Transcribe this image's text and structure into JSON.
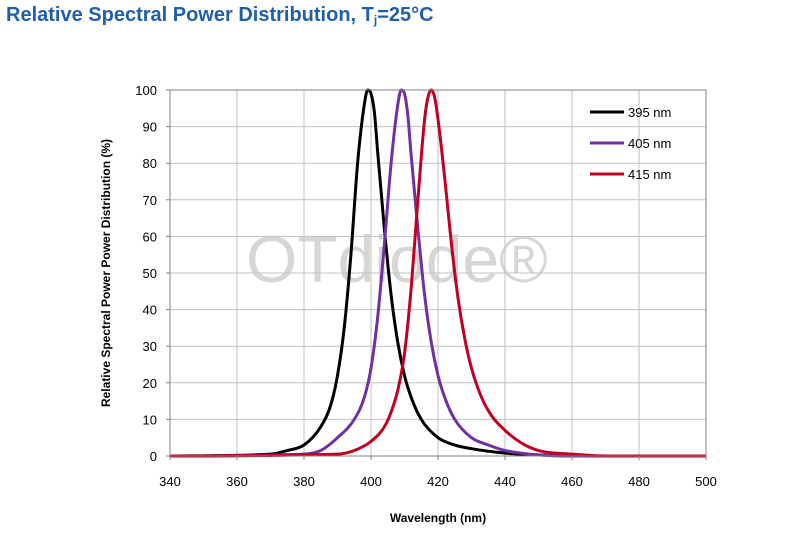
{
  "chart_data": {
    "type": "line",
    "title": {
      "main": "Relative Spectral Power Distribution, T",
      "sub": "j",
      "suffix": "=25°C"
    },
    "xlabel": "Wavelength (nm)",
    "ylabel": "Relative  Spectral Power Power Distribution (%)",
    "xlim": [
      340,
      500
    ],
    "ylim": [
      0,
      100
    ],
    "xticks": [
      340,
      360,
      380,
      400,
      420,
      440,
      460,
      480,
      500
    ],
    "yticks": [
      0,
      10,
      20,
      30,
      40,
      50,
      60,
      70,
      80,
      90,
      100
    ],
    "grid": true,
    "legend": "top-right",
    "watermark": "OTdiode®",
    "series": [
      {
        "name": "395 nm",
        "color": "#000000",
        "x": [
          340,
          370,
          375,
          380,
          385,
          388,
          390,
          392,
          394,
          396,
          398,
          399,
          400,
          401,
          402,
          404,
          406,
          408,
          410,
          412,
          415,
          420,
          425,
          430,
          440,
          450,
          460,
          500
        ],
        "y": [
          0,
          0.5,
          1.5,
          3,
          8,
          14,
          22,
          35,
          55,
          80,
          96,
          100,
          99,
          94,
          83,
          62,
          44,
          31,
          22,
          16,
          10,
          5,
          3,
          2,
          0.8,
          0.3,
          0,
          0
        ]
      },
      {
        "name": "405 nm",
        "color": "#7030a0",
        "x": [
          340,
          380,
          385,
          390,
          395,
          398,
          400,
          402,
          404,
          406,
          408,
          409,
          410,
          411,
          412,
          414,
          416,
          418,
          420,
          422,
          425,
          430,
          435,
          440,
          450,
          460,
          500
        ],
        "y": [
          0,
          0.5,
          1.5,
          5,
          10,
          16,
          24,
          38,
          58,
          80,
          96,
          100,
          99,
          93,
          82,
          62,
          44,
          31,
          22,
          16,
          10,
          5,
          3,
          1.5,
          0.3,
          0,
          0
        ]
      },
      {
        "name": "415 nm",
        "color": "#c00020",
        "x": [
          340,
          390,
          395,
          400,
          404,
          406,
          408,
          410,
          412,
          414,
          416,
          417,
          418,
          419,
          420,
          422,
          424,
          426,
          428,
          430,
          433,
          436,
          440,
          445,
          450,
          460,
          470,
          500
        ],
        "y": [
          0,
          0.5,
          1.5,
          4,
          8,
          12,
          18,
          28,
          46,
          70,
          92,
          98,
          100,
          98,
          92,
          76,
          58,
          43,
          32,
          24,
          16,
          11,
          7,
          3.5,
          1.5,
          0.5,
          0,
          0
        ]
      }
    ]
  }
}
